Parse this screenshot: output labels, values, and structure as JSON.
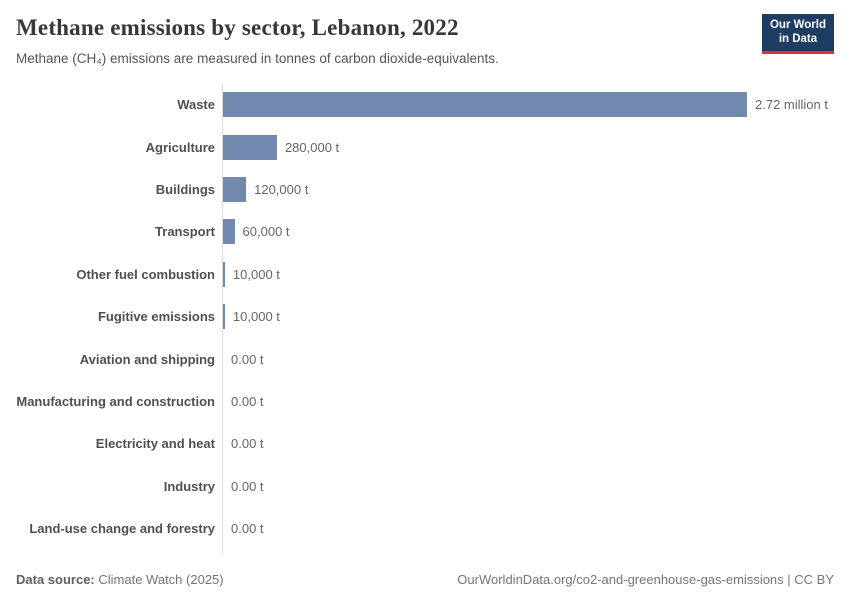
{
  "header": {
    "title": "Methane emissions by sector, Lebanon, 2022",
    "subtitle": "Methane (CH₄) emissions are measured in tonnes of carbon dioxide-equivalents."
  },
  "logo": {
    "line1": "Our World",
    "line2": "in Data",
    "bg_color": "#1d3d63",
    "accent_color": "#dc352e"
  },
  "chart_data": {
    "type": "bar",
    "orientation": "horizontal",
    "title": "Methane emissions by sector, Lebanon, 2022",
    "xlabel": "",
    "ylabel": "",
    "unit": "t",
    "xlim": [
      0,
      2720000
    ],
    "grid": false,
    "legend": "none",
    "bar_color": "#7288ad",
    "categories": [
      "Waste",
      "Agriculture",
      "Buildings",
      "Transport",
      "Other fuel combustion",
      "Fugitive emissions",
      "Aviation and shipping",
      "Manufacturing and construction",
      "Electricity and heat",
      "Industry",
      "Land-use change and forestry"
    ],
    "values": [
      2720000,
      280000,
      120000,
      60000,
      10000,
      10000,
      0,
      0,
      0,
      0,
      0
    ],
    "value_labels": [
      "2.72 million t",
      "280,000 t",
      "120,000 t",
      "60,000 t",
      "10,000 t",
      "10,000 t",
      "0.00 t",
      "0.00 t",
      "0.00 t",
      "0.00 t",
      "0.00 t"
    ]
  },
  "footer": {
    "source_label": "Data source:",
    "source_value": "Climate Watch (2025)",
    "right_text": "OurWorldinData.org/co2-and-greenhouse-gas-emissions | CC BY"
  }
}
